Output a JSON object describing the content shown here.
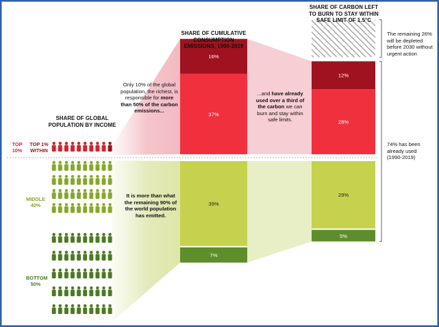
{
  "colors": {
    "dark_red": "#a0121f",
    "red": "#f0303d",
    "pink_fill": "#f6c6cc",
    "lime": "#c6d24e",
    "dark_green": "#5e8e2c",
    "lime_fill": "#e6ecc0",
    "hatch": "#b0b0b0",
    "top_text": "#d8222e",
    "mid_text": "#86a82a",
    "bottom_text": "#4c7a23"
  },
  "headers": {
    "population": "SHARE OF GLOBAL POPULATION BY INCOME",
    "emissions": "SHARE OF CUMULATIVE CONSUMPTION EMISSIONS, 1990-2019",
    "budget": "SHARE OF CARBON LEFT TO BURN TO STAY WITHIN SAFE LIMIT OF 1.5°C"
  },
  "groups": {
    "top": "TOP 10%",
    "top1": "TOP 1% WITHIN",
    "middle": "MIDDLE 40%",
    "bottom": "BOTTOM 50%"
  },
  "notes": {
    "richest_pre": "Only 10% of the global population, the richest, is responsible for ",
    "richest_bold": "more than 50% of the carbon emissions...",
    "used_pre": "...and ",
    "used_bold": "have already used over a third of the carbon",
    "used_post": " we can burn and stay within safe limits.",
    "remaining_bold": "It is more than what the remaining 90% of the world population has emitted.",
    "remaining_budget": "The remaining 26% will be depleted before 2030 without urgent action",
    "already_used": "74% has been already used",
    "already_used_years": "(1990-2019)"
  },
  "chart_data": {
    "type": "bar",
    "stacked": true,
    "categories": [
      "SHARE OF CUMULATIVE CONSUMPTION EMISSIONS, 1990-2019",
      "SHARE OF CARBON LEFT TO BURN TO STAY WITHIN SAFE LIMIT OF 1.5°C"
    ],
    "series": [
      {
        "name": "TOP 1% WITHIN",
        "values": [
          16,
          12
        ],
        "labels": [
          "16%",
          "12%"
        ]
      },
      {
        "name": "TOP 10%",
        "values": [
          37,
          28
        ],
        "labels": [
          "37%",
          "28%"
        ]
      },
      {
        "name": "MIDDLE 40%",
        "values": [
          39,
          29
        ],
        "labels": [
          "39%",
          "29%"
        ]
      },
      {
        "name": "BOTTOM 50%",
        "values": [
          7,
          5
        ],
        "labels": [
          "7%",
          "5%"
        ]
      }
    ],
    "remaining_budget": 26,
    "population": {
      "top10_people": 10,
      "top1_people": 1,
      "middle40_rows": 4,
      "bottom50_rows": 5,
      "people_per_row": 10
    }
  }
}
